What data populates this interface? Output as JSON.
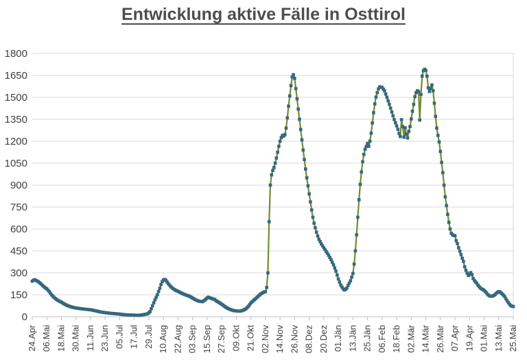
{
  "title": {
    "text": "Entwicklung aktive Fälle in Osttirol"
  },
  "colors": {
    "background": "#ffffff",
    "title_text": "#4d4d4d",
    "grid_line": "#d9d9d9",
    "axis_line": "#bfbfbf",
    "tick_label": "#404040",
    "series_line": "#748b2e",
    "series_marker": "#35687e"
  },
  "chart_data": {
    "type": "line",
    "title": "Entwicklung aktive Fälle in Osttirol",
    "xlabel": "",
    "ylabel": "",
    "ylim": [
      0,
      1800
    ],
    "y_ticks": [
      0,
      150,
      300,
      450,
      600,
      750,
      900,
      1050,
      1200,
      1350,
      1500,
      1650,
      1800
    ],
    "grid": "horizontal",
    "legend": "none",
    "x_total_days": 396,
    "x_tick_interval_days": 12,
    "x_tick_labels": [
      "24.Apr",
      "06.Mai",
      "18.Mai",
      "30.Mai",
      "11.Jun",
      "23.Jun",
      "05.Jul",
      "17.Jul",
      "29.Jul",
      "10.Aug",
      "22.Aug",
      "03.Sep",
      "15.Sep",
      "27.Sep",
      "09.Okt",
      "21.Okt",
      "02.Nov",
      "14.Nov",
      "26.Nov",
      "08.Dez",
      "20.Dez",
      "01.Jän",
      "13.Jän",
      "25.Jän",
      "06.Feb",
      "18.Feb",
      "02.Mär",
      "14.Mär",
      "26.Mär",
      "07.Apr",
      "19.Apr",
      "01.Mai",
      "13.Mai",
      "25.Mai"
    ],
    "series": [
      {
        "name": "aktive Fälle",
        "marker": "square",
        "marker_color": "#35687e",
        "line_color": "#748b2e",
        "sampling": "daily; values estimated from pixels, linear interpolation between keyframes [day_index, active_cases]",
        "keyframes": [
          [
            0,
            243
          ],
          [
            1,
            250
          ],
          [
            2,
            253
          ],
          [
            3,
            249
          ],
          [
            5,
            240
          ],
          [
            7,
            226
          ],
          [
            9,
            210
          ],
          [
            11,
            196
          ],
          [
            12,
            191
          ],
          [
            14,
            172
          ],
          [
            16,
            149
          ],
          [
            18,
            132
          ],
          [
            20,
            118
          ],
          [
            22,
            108
          ],
          [
            24,
            100
          ],
          [
            26,
            89
          ],
          [
            28,
            80
          ],
          [
            30,
            73
          ],
          [
            33,
            65
          ],
          [
            36,
            60
          ],
          [
            40,
            55
          ],
          [
            44,
            51
          ],
          [
            48,
            48
          ],
          [
            52,
            41
          ],
          [
            56,
            33
          ],
          [
            60,
            28
          ],
          [
            64,
            24
          ],
          [
            68,
            21
          ],
          [
            72,
            18
          ],
          [
            76,
            14
          ],
          [
            80,
            12
          ],
          [
            84,
            11
          ],
          [
            88,
            10
          ],
          [
            92,
            15
          ],
          [
            95,
            20
          ],
          [
            97,
            35
          ],
          [
            99,
            75
          ],
          [
            101,
            115
          ],
          [
            103,
            150
          ],
          [
            105,
            195
          ],
          [
            106,
            220
          ],
          [
            107,
            240
          ],
          [
            108,
            252
          ],
          [
            109,
            255
          ],
          [
            110,
            250
          ],
          [
            112,
            226
          ],
          [
            114,
            206
          ],
          [
            116,
            192
          ],
          [
            118,
            181
          ],
          [
            120,
            174
          ],
          [
            123,
            161
          ],
          [
            126,
            150
          ],
          [
            129,
            142
          ],
          [
            132,
            128
          ],
          [
            134,
            118
          ],
          [
            136,
            110
          ],
          [
            138,
            105
          ],
          [
            140,
            103
          ],
          [
            142,
            113
          ],
          [
            144,
            129
          ],
          [
            145,
            134
          ],
          [
            146,
            130
          ],
          [
            148,
            124
          ],
          [
            150,
            119
          ],
          [
            152,
            106
          ],
          [
            154,
            96
          ],
          [
            156,
            86
          ],
          [
            158,
            73
          ],
          [
            160,
            62
          ],
          [
            162,
            53
          ],
          [
            164,
            47
          ],
          [
            166,
            42
          ],
          [
            168,
            40
          ],
          [
            170,
            38
          ],
          [
            172,
            40
          ],
          [
            174,
            46
          ],
          [
            176,
            55
          ],
          [
            178,
            72
          ],
          [
            180,
            95
          ],
          [
            182,
            110
          ],
          [
            184,
            125
          ],
          [
            186,
            140
          ],
          [
            188,
            155
          ],
          [
            190,
            166
          ],
          [
            192,
            172
          ],
          [
            193,
            200
          ],
          [
            194,
            300
          ],
          [
            195,
            650
          ],
          [
            196,
            900
          ],
          [
            197,
            970
          ],
          [
            198,
            1000
          ],
          [
            199,
            1020
          ],
          [
            200,
            1050
          ],
          [
            201,
            1085
          ],
          [
            202,
            1125
          ],
          [
            203,
            1165
          ],
          [
            204,
            1200
          ],
          [
            205,
            1225
          ],
          [
            206,
            1240
          ],
          [
            207,
            1235
          ],
          [
            208,
            1245
          ],
          [
            209,
            1290
          ],
          [
            210,
            1360
          ],
          [
            211,
            1440
          ],
          [
            212,
            1510
          ],
          [
            213,
            1580
          ],
          [
            214,
            1640
          ],
          [
            215,
            1655
          ],
          [
            216,
            1630
          ],
          [
            217,
            1560
          ],
          [
            218,
            1490
          ],
          [
            219,
            1420
          ],
          [
            220,
            1350
          ],
          [
            221,
            1280
          ],
          [
            222,
            1210
          ],
          [
            223,
            1140
          ],
          [
            224,
            1075
          ],
          [
            225,
            1010
          ],
          [
            226,
            950
          ],
          [
            227,
            895
          ],
          [
            228,
            840
          ],
          [
            229,
            785
          ],
          [
            230,
            730
          ],
          [
            231,
            680
          ],
          [
            232,
            640
          ],
          [
            233,
            608
          ],
          [
            234,
            578
          ],
          [
            235,
            552
          ],
          [
            236,
            530
          ],
          [
            238,
            498
          ],
          [
            240,
            472
          ],
          [
            242,
            446
          ],
          [
            244,
            420
          ],
          [
            246,
            390
          ],
          [
            248,
            355
          ],
          [
            250,
            312
          ],
          [
            252,
            258
          ],
          [
            254,
            216
          ],
          [
            256,
            190
          ],
          [
            257,
            183
          ],
          [
            258,
            188
          ],
          [
            259,
            196
          ],
          [
            260,
            214
          ],
          [
            262,
            246
          ],
          [
            264,
            296
          ],
          [
            265,
            360
          ],
          [
            266,
            450
          ],
          [
            267,
            560
          ],
          [
            268,
            680
          ],
          [
            269,
            800
          ],
          [
            270,
            905
          ],
          [
            271,
            990
          ],
          [
            272,
            1060
          ],
          [
            273,
            1110
          ],
          [
            274,
            1145
          ],
          [
            275,
            1165
          ],
          [
            276,
            1185
          ],
          [
            277,
            1165
          ],
          [
            278,
            1200
          ],
          [
            279,
            1255
          ],
          [
            280,
            1325
          ],
          [
            281,
            1395
          ],
          [
            282,
            1455
          ],
          [
            283,
            1502
          ],
          [
            284,
            1532
          ],
          [
            285,
            1558
          ],
          [
            286,
            1572
          ],
          [
            288,
            1568
          ],
          [
            290,
            1545
          ],
          [
            292,
            1500
          ],
          [
            294,
            1452
          ],
          [
            296,
            1400
          ],
          [
            298,
            1348
          ],
          [
            300,
            1305
          ],
          [
            301,
            1282
          ],
          [
            302,
            1252
          ],
          [
            303,
            1232
          ],
          [
            304,
            1348
          ],
          [
            305,
            1300
          ],
          [
            306,
            1228
          ],
          [
            307,
            1292
          ],
          [
            308,
            1248
          ],
          [
            309,
            1222
          ],
          [
            310,
            1268
          ],
          [
            311,
            1300
          ],
          [
            312,
            1352
          ],
          [
            313,
            1405
          ],
          [
            314,
            1452
          ],
          [
            315,
            1505
          ],
          [
            316,
            1532
          ],
          [
            317,
            1545
          ],
          [
            318,
            1540
          ],
          [
            319,
            1345
          ],
          [
            320,
            1520
          ],
          [
            321,
            1645
          ],
          [
            322,
            1682
          ],
          [
            323,
            1692
          ],
          [
            324,
            1685
          ],
          [
            325,
            1645
          ],
          [
            326,
            1565
          ],
          [
            327,
            1540
          ],
          [
            328,
            1562
          ],
          [
            329,
            1585
          ],
          [
            330,
            1545
          ],
          [
            331,
            1460
          ],
          [
            332,
            1370
          ],
          [
            333,
            1290
          ],
          [
            334,
            1240
          ],
          [
            335,
            1195
          ],
          [
            336,
            1130
          ],
          [
            337,
            1055
          ],
          [
            338,
            985
          ],
          [
            339,
            900
          ],
          [
            340,
            820
          ],
          [
            341,
            760
          ],
          [
            342,
            700
          ],
          [
            343,
            645
          ],
          [
            344,
            600
          ],
          [
            345,
            570
          ],
          [
            346,
            560
          ],
          [
            347,
            556
          ],
          [
            348,
            554
          ],
          [
            349,
            520
          ],
          [
            350,
            500
          ],
          [
            351,
            472
          ],
          [
            352,
            448
          ],
          [
            353,
            425
          ],
          [
            354,
            400
          ],
          [
            355,
            378
          ],
          [
            356,
            342
          ],
          [
            357,
            318
          ],
          [
            358,
            298
          ],
          [
            359,
            282
          ],
          [
            360,
            290
          ],
          [
            361,
            302
          ],
          [
            362,
            288
          ],
          [
            363,
            262
          ],
          [
            364,
            248
          ],
          [
            365,
            238
          ],
          [
            366,
            228
          ],
          [
            367,
            215
          ],
          [
            368,
            205
          ],
          [
            369,
            196
          ],
          [
            370,
            190
          ],
          [
            371,
            186
          ],
          [
            372,
            180
          ],
          [
            373,
            172
          ],
          [
            374,
            163
          ],
          [
            375,
            152
          ],
          [
            376,
            145
          ],
          [
            377,
            141
          ],
          [
            378,
            140
          ],
          [
            379,
            142
          ],
          [
            380,
            146
          ],
          [
            381,
            152
          ],
          [
            382,
            160
          ],
          [
            383,
            167
          ],
          [
            384,
            172
          ],
          [
            385,
            170
          ],
          [
            386,
            163
          ],
          [
            387,
            155
          ],
          [
            388,
            147
          ],
          [
            389,
            136
          ],
          [
            390,
            122
          ],
          [
            391,
            108
          ],
          [
            392,
            96
          ],
          [
            393,
            85
          ],
          [
            394,
            76
          ],
          [
            395,
            72
          ],
          [
            396,
            70
          ]
        ]
      }
    ]
  }
}
